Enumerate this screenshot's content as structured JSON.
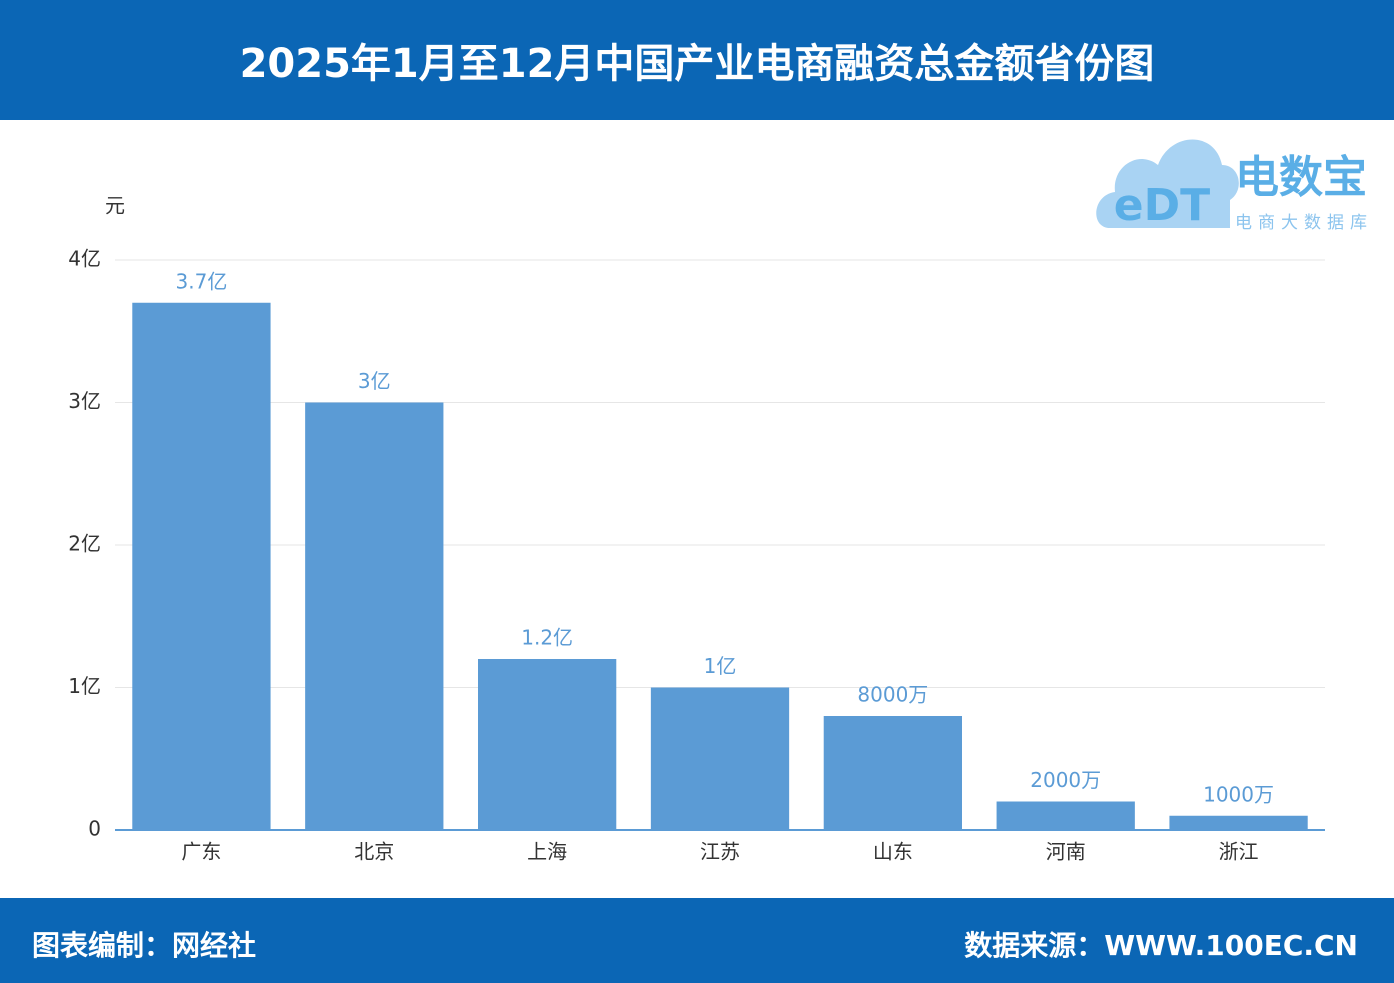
{
  "chart_data": {
    "type": "bar",
    "title": "2025年1月至12月中国产业电商融资总金额省份图",
    "y_unit": "元",
    "categories": [
      "广东",
      "北京",
      "上海",
      "江苏",
      "山东",
      "河南",
      "浙江"
    ],
    "values": [
      370000000,
      300000000,
      120000000,
      100000000,
      80000000,
      20000000,
      10000000
    ],
    "value_labels": [
      "3.7亿",
      "3亿",
      "1.2亿",
      "1亿",
      "8000万",
      "2000万",
      "1000万"
    ],
    "color": "#5b9bd5",
    "ylim": [
      0,
      400000000
    ],
    "yticks": [
      0,
      {
        "value": 100000000,
        "label": "1亿"
      },
      {
        "value": 200000000,
        "label": "2亿"
      },
      {
        "value": 300000000,
        "label": "3亿"
      },
      {
        "value": 400000000,
        "label": "4亿"
      }
    ],
    "grid": true
  },
  "logo": {
    "mark": "eDT",
    "name": "电数宝",
    "sub": "电商大数据库"
  },
  "footer": {
    "left": "图表编制：网经社",
    "right": "数据来源：WWW.100EC.CN"
  }
}
